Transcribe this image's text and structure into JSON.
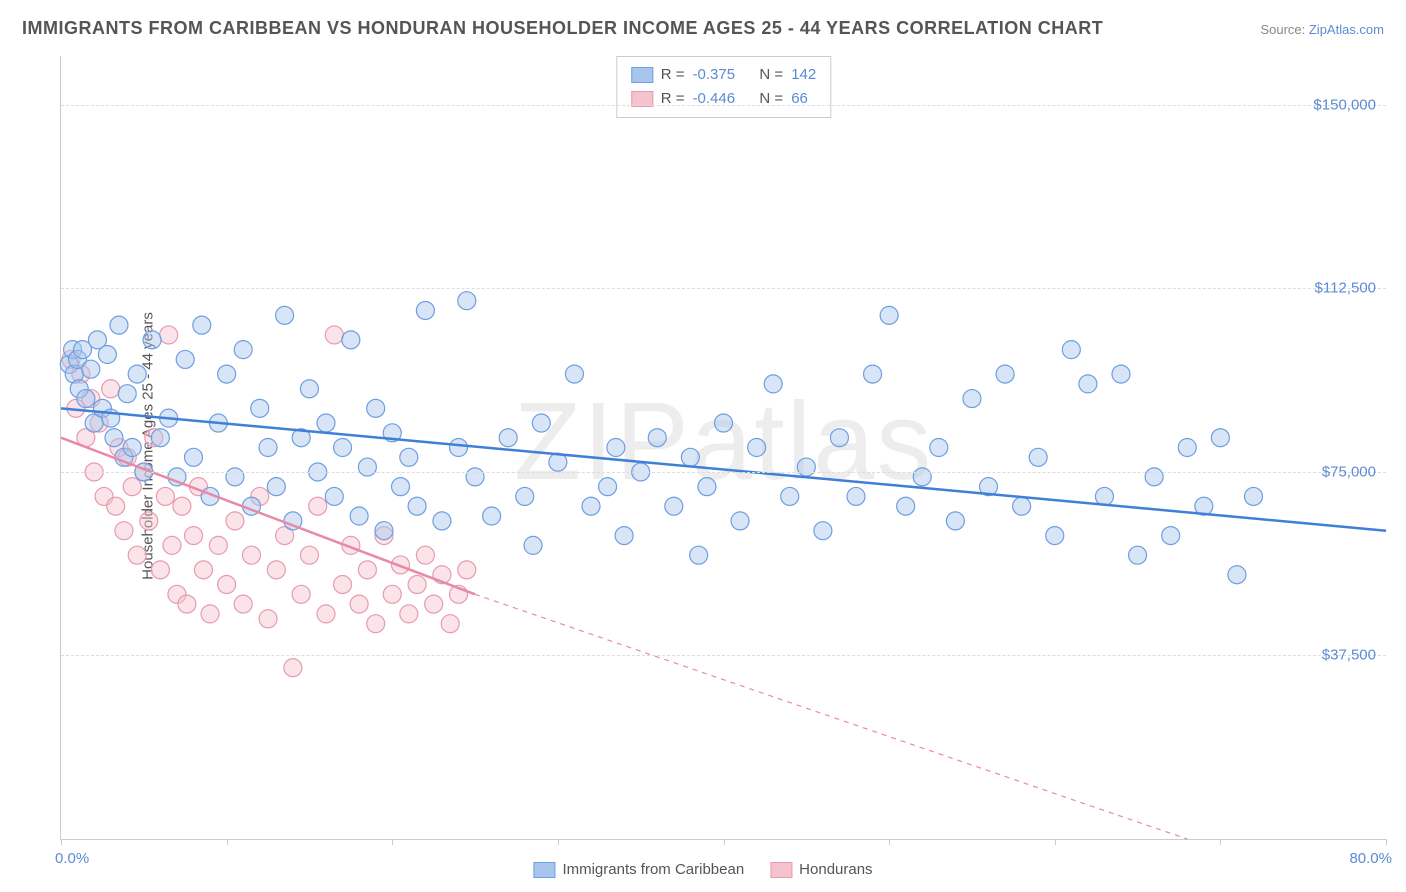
{
  "title": "IMMIGRANTS FROM CARIBBEAN VS HONDURAN HOUSEHOLDER INCOME AGES 25 - 44 YEARS CORRELATION CHART",
  "source_label": "Source: ",
  "source_name": "ZipAtlas.com",
  "watermark": "ZIPatlas",
  "chart": {
    "type": "scatter",
    "background_color": "#ffffff",
    "grid_color": "#dddddd",
    "axis_color": "#cccccc",
    "ylabel": "Householder Income Ages 25 - 44 years",
    "ylabel_fontsize": 15,
    "ylabel_color": "#555555",
    "xlim": [
      0,
      80
    ],
    "ylim": [
      0,
      160000
    ],
    "xtick_labels": {
      "min": "0.0%",
      "max": "80.0%"
    },
    "xtick_positions_pct": [
      0,
      10,
      20,
      30,
      40,
      50,
      60,
      70,
      80
    ],
    "ytick_labels": [
      "$37,500",
      "$75,000",
      "$112,500",
      "$150,000"
    ],
    "ytick_values": [
      37500,
      75000,
      112500,
      150000
    ],
    "tick_label_color": "#5b8bd4",
    "tick_label_fontsize": 15,
    "marker_radius": 9,
    "marker_opacity": 0.45,
    "series": [
      {
        "name": "Immigrants from Caribbean",
        "fill_color": "#a8c6ed",
        "stroke_color": "#6d9fe0",
        "line_color": "#3f7fd6",
        "line_width": 2.5,
        "trend": {
          "x1": 0,
          "y1": 88000,
          "x2": 80,
          "y2": 63000
        },
        "correlation": {
          "R": "-0.375",
          "N": "142"
        },
        "points": [
          [
            0.5,
            97000
          ],
          [
            0.7,
            100000
          ],
          [
            0.8,
            95000
          ],
          [
            1.0,
            98000
          ],
          [
            1.1,
            92000
          ],
          [
            1.3,
            100000
          ],
          [
            1.5,
            90000
          ],
          [
            1.8,
            96000
          ],
          [
            2.0,
            85000
          ],
          [
            2.2,
            102000
          ],
          [
            2.5,
            88000
          ],
          [
            2.8,
            99000
          ],
          [
            3.0,
            86000
          ],
          [
            3.2,
            82000
          ],
          [
            3.5,
            105000
          ],
          [
            3.8,
            78000
          ],
          [
            4.0,
            91000
          ],
          [
            4.3,
            80000
          ],
          [
            4.6,
            95000
          ],
          [
            5.0,
            75000
          ],
          [
            5.5,
            102000
          ],
          [
            6.0,
            82000
          ],
          [
            6.5,
            86000
          ],
          [
            7.0,
            74000
          ],
          [
            7.5,
            98000
          ],
          [
            8.0,
            78000
          ],
          [
            8.5,
            105000
          ],
          [
            9.0,
            70000
          ],
          [
            9.5,
            85000
          ],
          [
            10.0,
            95000
          ],
          [
            10.5,
            74000
          ],
          [
            11.0,
            100000
          ],
          [
            11.5,
            68000
          ],
          [
            12.0,
            88000
          ],
          [
            12.5,
            80000
          ],
          [
            13.0,
            72000
          ],
          [
            13.5,
            107000
          ],
          [
            14.0,
            65000
          ],
          [
            14.5,
            82000
          ],
          [
            15.0,
            92000
          ],
          [
            15.5,
            75000
          ],
          [
            16.0,
            85000
          ],
          [
            16.5,
            70000
          ],
          [
            17.0,
            80000
          ],
          [
            17.5,
            102000
          ],
          [
            18.0,
            66000
          ],
          [
            18.5,
            76000
          ],
          [
            19.0,
            88000
          ],
          [
            19.5,
            63000
          ],
          [
            20.0,
            83000
          ],
          [
            20.5,
            72000
          ],
          [
            21.0,
            78000
          ],
          [
            21.5,
            68000
          ],
          [
            22.0,
            108000
          ],
          [
            23.0,
            65000
          ],
          [
            24.0,
            80000
          ],
          [
            24.5,
            110000
          ],
          [
            25.0,
            74000
          ],
          [
            26.0,
            66000
          ],
          [
            27.0,
            82000
          ],
          [
            28.0,
            70000
          ],
          [
            28.5,
            60000
          ],
          [
            29.0,
            85000
          ],
          [
            30.0,
            77000
          ],
          [
            31.0,
            95000
          ],
          [
            32.0,
            68000
          ],
          [
            33.0,
            72000
          ],
          [
            33.5,
            80000
          ],
          [
            34.0,
            62000
          ],
          [
            35.0,
            75000
          ],
          [
            36.0,
            82000
          ],
          [
            37.0,
            68000
          ],
          [
            38.0,
            78000
          ],
          [
            38.5,
            58000
          ],
          [
            39.0,
            72000
          ],
          [
            40.0,
            85000
          ],
          [
            41.0,
            65000
          ],
          [
            42.0,
            80000
          ],
          [
            43.0,
            93000
          ],
          [
            44.0,
            70000
          ],
          [
            45.0,
            76000
          ],
          [
            46.0,
            63000
          ],
          [
            47.0,
            82000
          ],
          [
            48.0,
            70000
          ],
          [
            49.0,
            95000
          ],
          [
            50.0,
            107000
          ],
          [
            51.0,
            68000
          ],
          [
            52.0,
            74000
          ],
          [
            53.0,
            80000
          ],
          [
            54.0,
            65000
          ],
          [
            55.0,
            90000
          ],
          [
            56.0,
            72000
          ],
          [
            57.0,
            95000
          ],
          [
            58.0,
            68000
          ],
          [
            59.0,
            78000
          ],
          [
            60.0,
            62000
          ],
          [
            61.0,
            100000
          ],
          [
            62.0,
            93000
          ],
          [
            63.0,
            70000
          ],
          [
            64.0,
            95000
          ],
          [
            65.0,
            58000
          ],
          [
            66.0,
            74000
          ],
          [
            67.0,
            62000
          ],
          [
            68.0,
            80000
          ],
          [
            69.0,
            68000
          ],
          [
            70.0,
            82000
          ],
          [
            71.0,
            54000
          ],
          [
            72.0,
            70000
          ]
        ]
      },
      {
        "name": "Hondurans",
        "fill_color": "#f5c2ce",
        "stroke_color": "#e79bb0",
        "line_color": "#e88aa5",
        "line_width": 2.5,
        "trend_solid": {
          "x1": 0,
          "y1": 82000,
          "x2": 25,
          "y2": 50000
        },
        "trend_dashed": {
          "x1": 25,
          "y1": 50000,
          "x2": 68,
          "y2": 0
        },
        "correlation": {
          "R": "-0.446",
          "N": "66"
        },
        "points": [
          [
            0.6,
            98000
          ],
          [
            0.9,
            88000
          ],
          [
            1.2,
            95000
          ],
          [
            1.5,
            82000
          ],
          [
            1.8,
            90000
          ],
          [
            2.0,
            75000
          ],
          [
            2.3,
            85000
          ],
          [
            2.6,
            70000
          ],
          [
            3.0,
            92000
          ],
          [
            3.3,
            68000
          ],
          [
            3.5,
            80000
          ],
          [
            3.8,
            63000
          ],
          [
            4.0,
            78000
          ],
          [
            4.3,
            72000
          ],
          [
            4.6,
            58000
          ],
          [
            5.0,
            75000
          ],
          [
            5.3,
            65000
          ],
          [
            5.6,
            82000
          ],
          [
            6.0,
            55000
          ],
          [
            6.3,
            70000
          ],
          [
            6.5,
            103000
          ],
          [
            6.7,
            60000
          ],
          [
            7.0,
            50000
          ],
          [
            7.3,
            68000
          ],
          [
            7.6,
            48000
          ],
          [
            8.0,
            62000
          ],
          [
            8.3,
            72000
          ],
          [
            8.6,
            55000
          ],
          [
            9.0,
            46000
          ],
          [
            9.5,
            60000
          ],
          [
            10.0,
            52000
          ],
          [
            10.5,
            65000
          ],
          [
            11.0,
            48000
          ],
          [
            11.5,
            58000
          ],
          [
            12.0,
            70000
          ],
          [
            12.5,
            45000
          ],
          [
            13.0,
            55000
          ],
          [
            13.5,
            62000
          ],
          [
            14.0,
            35000
          ],
          [
            14.5,
            50000
          ],
          [
            15.0,
            58000
          ],
          [
            15.5,
            68000
          ],
          [
            16.0,
            46000
          ],
          [
            16.5,
            103000
          ],
          [
            17.0,
            52000
          ],
          [
            17.5,
            60000
          ],
          [
            18.0,
            48000
          ],
          [
            18.5,
            55000
          ],
          [
            19.0,
            44000
          ],
          [
            19.5,
            62000
          ],
          [
            20.0,
            50000
          ],
          [
            20.5,
            56000
          ],
          [
            21.0,
            46000
          ],
          [
            21.5,
            52000
          ],
          [
            22.0,
            58000
          ],
          [
            22.5,
            48000
          ],
          [
            23.0,
            54000
          ],
          [
            23.5,
            44000
          ],
          [
            24.0,
            50000
          ],
          [
            24.5,
            55000
          ]
        ]
      }
    ],
    "legend_labels": {
      "R": "R =",
      "N": "N ="
    }
  }
}
